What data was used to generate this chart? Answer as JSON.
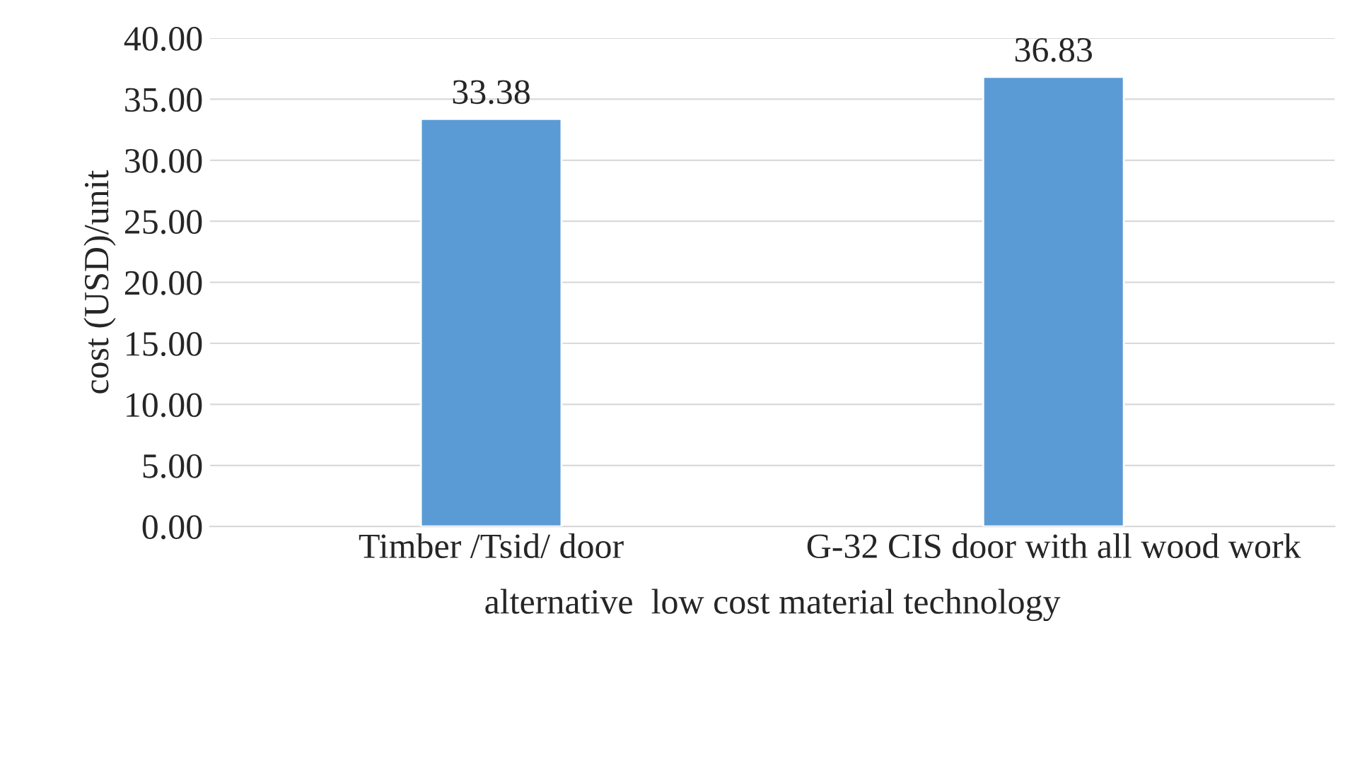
{
  "chart_data": {
    "type": "bar",
    "categories": [
      "Timber /Tsid/ door",
      "G-32 CIS door with all wood work"
    ],
    "values": [
      33.38,
      36.83
    ],
    "color": "#5b9bd5",
    "xlabel": "alternative  low cost material technology",
    "ylabel": "cost (USD)/unit",
    "ylim": [
      0,
      40
    ],
    "yticks": [
      {
        "value": 0,
        "label": "0.00"
      },
      {
        "value": 5,
        "label": "5.00"
      },
      {
        "value": 10,
        "label": "10.00"
      },
      {
        "value": 15,
        "label": "15.00"
      },
      {
        "value": 20,
        "label": "20.00"
      },
      {
        "value": 25,
        "label": "25.00"
      },
      {
        "value": 30,
        "label": "30.00"
      },
      {
        "value": 35,
        "label": "35.00"
      },
      {
        "value": 40,
        "label": "40.00"
      }
    ],
    "grid": "y",
    "data_labels": true
  }
}
